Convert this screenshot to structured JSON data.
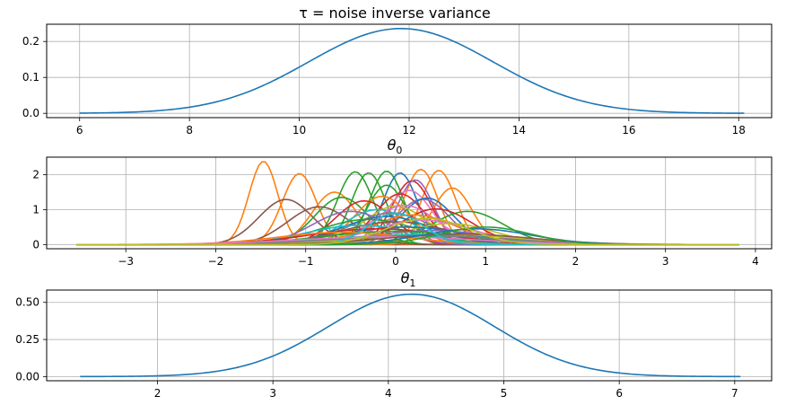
{
  "chart_data": [
    {
      "type": "line",
      "title": "τ = noise inverse variance",
      "xlim": [
        5.4,
        18.6
      ],
      "ylim": [
        -0.012,
        0.248
      ],
      "xticks": [
        6,
        8,
        10,
        12,
        14,
        16,
        18
      ],
      "yticks": [
        0.0,
        0.1,
        0.2
      ],
      "ytick_labels": [
        "0.0",
        "0.1",
        "0.2"
      ],
      "grid": true,
      "series": [
        {
          "color": "#1f77b4",
          "gaussian": {
            "mean": 11.85,
            "sd": 1.68,
            "peak": 0.236,
            "xmin": 6.0,
            "xmax": 18.1
          }
        }
      ]
    },
    {
      "type": "line",
      "title": "θ",
      "title_subscript": "0",
      "xlim": [
        -3.88,
        4.18
      ],
      "ylim": [
        -0.12,
        2.5
      ],
      "xticks": [
        -3,
        -2,
        -1,
        0,
        1,
        2,
        3,
        4
      ],
      "yticks": [
        0,
        1,
        2
      ],
      "ytick_labels": [
        "0",
        "1",
        "2"
      ],
      "grid": true,
      "x_range": [
        -3.55,
        3.82
      ],
      "series": [
        {
          "color": "#ff7f0e",
          "mean": -1.47,
          "sd": 0.16,
          "peak": 2.38
        },
        {
          "color": "#ff7f0e",
          "mean": -1.07,
          "sd": 0.19,
          "peak": 2.03
        },
        {
          "color": "#8c564b",
          "mean": -1.22,
          "sd": 0.3,
          "peak": 1.29
        },
        {
          "color": "#ff7f0e",
          "mean": -0.68,
          "sd": 0.25,
          "peak": 1.5
        },
        {
          "color": "#2ca02c",
          "mean": -0.45,
          "sd": 0.2,
          "peak": 2.08
        },
        {
          "color": "#2ca02c",
          "mean": -0.3,
          "sd": 0.19,
          "peak": 2.05
        },
        {
          "color": "#2ca02c",
          "mean": -0.1,
          "sd": 0.19,
          "peak": 2.1
        },
        {
          "color": "#1f77b4",
          "mean": 0.05,
          "sd": 0.19,
          "peak": 2.05
        },
        {
          "color": "#ff7f0e",
          "mean": 0.28,
          "sd": 0.19,
          "peak": 2.15
        },
        {
          "color": "#ff7f0e",
          "mean": 0.48,
          "sd": 0.19,
          "peak": 2.12
        },
        {
          "color": "#d62728",
          "mean": 0.18,
          "sd": 0.22,
          "peak": 1.82
        },
        {
          "color": "#9467bd",
          "mean": 0.22,
          "sd": 0.2,
          "peak": 1.85
        },
        {
          "color": "#2ca02c",
          "mean": -0.1,
          "sd": 0.22,
          "peak": 1.7
        },
        {
          "color": "#ff7f0e",
          "mean": 0.63,
          "sd": 0.22,
          "peak": 1.62
        },
        {
          "color": "#e377c2",
          "mean": 0.15,
          "sd": 0.26,
          "peak": 1.55
        },
        {
          "color": "#d62728",
          "mean": 0.05,
          "sd": 0.28,
          "peak": 1.45
        },
        {
          "color": "#2ca02c",
          "mean": -0.6,
          "sd": 0.3,
          "peak": 1.35
        },
        {
          "color": "#ff7f0e",
          "mean": -0.15,
          "sd": 0.3,
          "peak": 1.38
        },
        {
          "color": "#9467bd",
          "mean": 0.3,
          "sd": 0.3,
          "peak": 1.3
        },
        {
          "color": "#d62728",
          "mean": -0.35,
          "sd": 0.32,
          "peak": 1.25
        },
        {
          "color": "#1f77b4",
          "mean": 0.35,
          "sd": 0.3,
          "peak": 1.33
        },
        {
          "color": "#8c564b",
          "mean": -0.85,
          "sd": 0.35,
          "peak": 1.08
        },
        {
          "color": "#bcbd22",
          "mean": 0.0,
          "sd": 0.35,
          "peak": 1.1
        },
        {
          "color": "#17becf",
          "mean": -0.2,
          "sd": 0.38,
          "peak": 1.0
        },
        {
          "color": "#e377c2",
          "mean": 0.1,
          "sd": 0.36,
          "peak": 1.12
        },
        {
          "color": "#7f7f7f",
          "mean": -0.05,
          "sd": 0.45,
          "peak": 0.9
        },
        {
          "color": "#2ca02c",
          "mean": 0.8,
          "sd": 0.4,
          "peak": 0.95
        },
        {
          "color": "#9467bd",
          "mean": -0.5,
          "sd": 0.42,
          "peak": 0.95
        },
        {
          "color": "#d62728",
          "mean": 0.45,
          "sd": 0.4,
          "peak": 1.02
        },
        {
          "color": "#1f77b4",
          "mean": -0.1,
          "sd": 0.5,
          "peak": 0.8
        },
        {
          "color": "#ff7f0e",
          "mean": 0.2,
          "sd": 0.48,
          "peak": 0.85
        },
        {
          "color": "#2ca02c",
          "mean": -0.3,
          "sd": 0.55,
          "peak": 0.72
        },
        {
          "color": "#8c564b",
          "mean": 0.0,
          "sd": 0.6,
          "peak": 0.65
        },
        {
          "color": "#e377c2",
          "mean": 0.3,
          "sd": 0.55,
          "peak": 0.7
        },
        {
          "color": "#bcbd22",
          "mean": 0.6,
          "sd": 0.5,
          "peak": 0.6
        },
        {
          "color": "#17becf",
          "mean": -0.4,
          "sd": 0.6,
          "peak": 0.55
        },
        {
          "color": "#1f77b4",
          "mean": 0.1,
          "sd": 0.7,
          "peak": 0.5
        },
        {
          "color": "#d62728",
          "mean": -0.2,
          "sd": 0.75,
          "peak": 0.45
        },
        {
          "color": "#9467bd",
          "mean": 0.4,
          "sd": 0.7,
          "peak": 0.4
        },
        {
          "color": "#2ca02c",
          "mean": 0.0,
          "sd": 0.8,
          "peak": 0.38
        },
        {
          "color": "#bcbd22",
          "mean": 0.5,
          "sd": 0.85,
          "peak": 0.3
        },
        {
          "color": "#17becf",
          "mean": 0.2,
          "sd": 0.9,
          "peak": 0.28
        },
        {
          "color": "#ff7f0e",
          "mean": -0.6,
          "sd": 0.7,
          "peak": 0.35
        },
        {
          "color": "#7f7f7f",
          "mean": 0.3,
          "sd": 0.95,
          "peak": 0.25
        },
        {
          "color": "#e377c2",
          "mean": -0.1,
          "sd": 1.0,
          "peak": 0.22
        },
        {
          "color": "#8c564b",
          "mean": 0.7,
          "sd": 0.8,
          "peak": 0.3
        },
        {
          "color": "#1f77b4",
          "mean": 0.9,
          "sd": 0.6,
          "peak": 0.45
        },
        {
          "color": "#2ca02c",
          "mean": 1.0,
          "sd": 0.5,
          "peak": 0.5
        },
        {
          "color": "#17becf",
          "mean": 0.0,
          "sd": 0.3,
          "peak": 0.9
        },
        {
          "color": "#bcbd22",
          "mean": 0.35,
          "sd": 0.45,
          "peak": 0.75
        }
      ]
    },
    {
      "type": "line",
      "title": "θ",
      "title_subscript": "1",
      "xlim": [
        1.04,
        7.32
      ],
      "ylim": [
        -0.028,
        0.583
      ],
      "xticks": [
        2,
        3,
        4,
        5,
        6,
        7
      ],
      "yticks": [
        0.0,
        0.25,
        0.5
      ],
      "ytick_labels": [
        "0.00",
        "0.25",
        "0.50"
      ],
      "grid": true,
      "series": [
        {
          "color": "#1f77b4",
          "gaussian": {
            "mean": 4.2,
            "sd": 0.72,
            "peak": 0.555,
            "xmin": 1.33,
            "xmax": 7.05
          }
        }
      ]
    }
  ]
}
